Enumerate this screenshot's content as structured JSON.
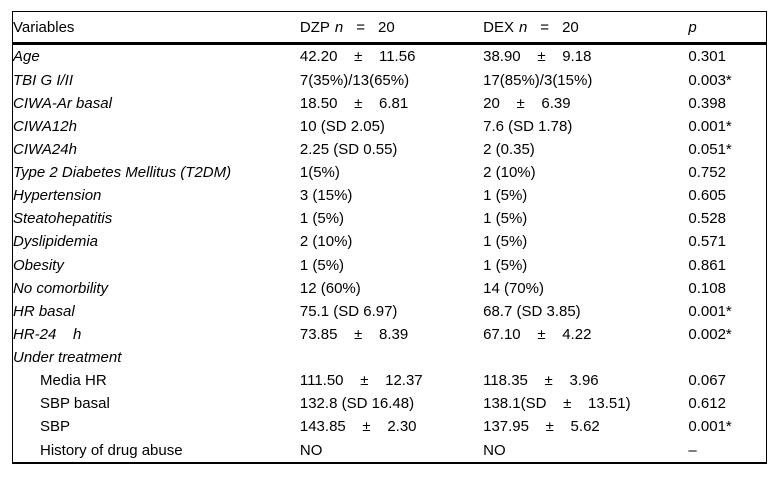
{
  "table": {
    "header": {
      "variables": "Variables",
      "dzp_name": "DZP",
      "dzp_n": "n",
      "dzp_eq": "=",
      "dzp_count": "20",
      "dex_name": "DEX",
      "dex_n": "n",
      "dex_eq": "=",
      "dex_count": "20",
      "p": "p"
    },
    "rows": [
      {
        "label": "Age",
        "italic": true,
        "indent": false,
        "dzp": "42.20    ±    11.56",
        "dex": "38.90    ±    9.18",
        "p": "0.301"
      },
      {
        "label": "TBI G I/II",
        "italic": true,
        "indent": false,
        "dzp": "7(35%)/13(65%)",
        "dex": "17(85%)/3(15%)",
        "p": "0.003*"
      },
      {
        "label": "CIWA-Ar basal",
        "italic": true,
        "indent": false,
        "dzp": "18.50    ±    6.81",
        "dex": "20    ±    6.39",
        "p": "0.398"
      },
      {
        "label": "CIWA12h",
        "italic": true,
        "indent": false,
        "dzp": "10 (SD 2.05)",
        "dex": "7.6 (SD 1.78)",
        "p": "0.001*"
      },
      {
        "label": "CIWA24h",
        "italic": true,
        "indent": false,
        "dzp": "2.25 (SD 0.55)",
        "dex": "2 (0.35)",
        "p": "0.051*"
      },
      {
        "label": "Type 2 Diabetes Mellitus (T2DM)",
        "italic": true,
        "indent": false,
        "dzp": "1(5%)",
        "dex": "2 (10%)",
        "p": "0.752"
      },
      {
        "label": "Hypertension",
        "italic": true,
        "indent": false,
        "dzp": "3 (15%)",
        "dex": "1 (5%)",
        "p": "0.605"
      },
      {
        "label": "Steatohepatitis",
        "italic": true,
        "indent": false,
        "dzp": "1 (5%)",
        "dex": "1 (5%)",
        "p": "0.528"
      },
      {
        "label": "Dyslipidemia",
        "italic": true,
        "indent": false,
        "dzp": "2 (10%)",
        "dex": "1 (5%)",
        "p": "0.571"
      },
      {
        "label": "Obesity",
        "italic": true,
        "indent": false,
        "dzp": "1 (5%)",
        "dex": "1 (5%)",
        "p": "0.861"
      },
      {
        "label": "No comorbility",
        "italic": true,
        "indent": false,
        "dzp": "12 (60%)",
        "dex": "14 (70%)",
        "p": "0.108"
      },
      {
        "label": "HR basal",
        "italic": true,
        "indent": false,
        "dzp": "75.1 (SD 6.97)",
        "dex": "68.7 (SD 3.85)",
        "p": "0.001*"
      },
      {
        "label": "HR-24    h",
        "italic": true,
        "indent": false,
        "dzp": "73.85    ±    8.39",
        "dex": "67.10    ±    4.22",
        "p": "0.002*"
      },
      {
        "label": "Under treatment",
        "italic": true,
        "indent": false,
        "dzp": "",
        "dex": "",
        "p": ""
      },
      {
        "label": "Media HR",
        "italic": false,
        "indent": true,
        "dzp": "111.50    ±    12.37",
        "dex": "118.35    ±    3.96",
        "p": "0.067"
      },
      {
        "label": "SBP basal",
        "italic": false,
        "indent": true,
        "dzp": "132.8 (SD 16.48)",
        "dex": "138.1(SD    ±    13.51)",
        "p": "0.612"
      },
      {
        "label": "SBP",
        "italic": false,
        "indent": true,
        "dzp": "143.85    ±    2.30",
        "dex": "137.95    ±    5.62",
        "p": "0.001*"
      },
      {
        "label": "History of drug abuse",
        "italic": false,
        "indent": true,
        "dzp": "NO",
        "dex": "NO",
        "p": "–"
      }
    ]
  }
}
